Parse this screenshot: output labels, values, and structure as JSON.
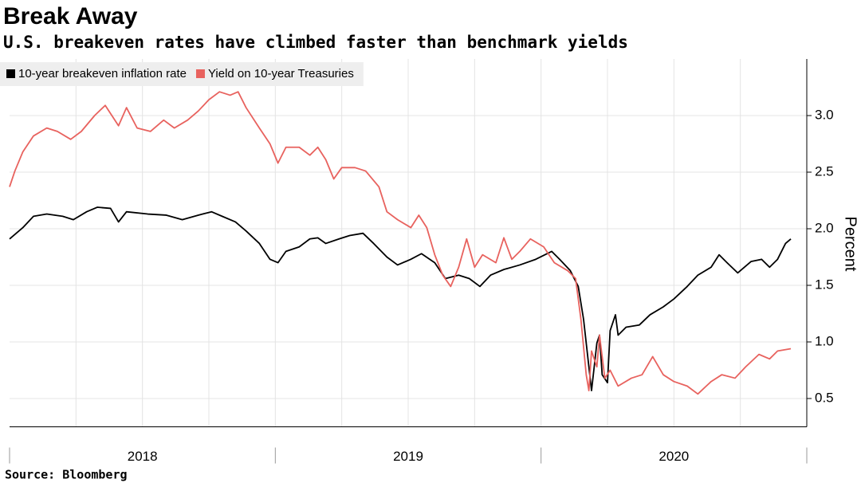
{
  "chart_data": {
    "type": "line",
    "title": "Break Away",
    "subtitle": "U.S. breakeven rates have climbed faster than benchmark yields",
    "source": "Source: Bloomberg",
    "y_label": "Percent",
    "legend": "upper left",
    "grid": true,
    "xlim": [
      2018,
      2021
    ],
    "xticks": [
      {
        "value": 2018.5,
        "label": "2018"
      },
      {
        "value": 2019.5,
        "label": "2019"
      },
      {
        "value": 2020.5,
        "label": "2020"
      }
    ],
    "ylim": [
      0.25,
      3.5
    ],
    "yticks": [
      0.5,
      {
        "value": 1,
        "label": "1.0"
      },
      1.5,
      {
        "value": 2,
        "label": "2.0"
      },
      2.5,
      {
        "value": 3,
        "label": "3.0"
      }
    ],
    "series": [
      {
        "name": "10-year breakeven inflation rate",
        "color": "#000000",
        "x": [
          2018.0,
          2018.05,
          2018.09,
          2018.14,
          2018.2,
          2018.24,
          2018.29,
          2018.33,
          2018.38,
          2018.41,
          2018.44,
          2018.52,
          2018.59,
          2018.65,
          2018.71,
          2018.76,
          2018.8,
          2018.85,
          2018.89,
          2018.94,
          2018.98,
          2019.01,
          2019.04,
          2019.09,
          2019.13,
          2019.16,
          2019.19,
          2019.24,
          2019.28,
          2019.33,
          2019.37,
          2019.42,
          2019.46,
          2019.51,
          2019.55,
          2019.6,
          2019.64,
          2019.69,
          2019.73,
          2019.77,
          2019.81,
          2019.86,
          2019.92,
          2019.98,
          2020.04,
          2020.07,
          2020.11,
          2020.14,
          2020.16,
          2020.18,
          2020.19,
          2020.21,
          2020.22,
          2020.23,
          2020.25,
          2020.26,
          2020.28,
          2020.29,
          2020.32,
          2020.37,
          2020.41,
          2020.46,
          2020.5,
          2020.55,
          2020.59,
          2020.64,
          2020.67,
          2020.7,
          2020.74,
          2020.79,
          2020.83,
          2020.86,
          2020.89,
          2020.92,
          2020.94
        ],
        "values": [
          1.91,
          2.01,
          2.11,
          2.13,
          2.11,
          2.08,
          2.15,
          2.19,
          2.18,
          2.06,
          2.15,
          2.13,
          2.12,
          2.08,
          2.12,
          2.15,
          2.11,
          2.06,
          1.98,
          1.87,
          1.73,
          1.7,
          1.8,
          1.84,
          1.91,
          1.92,
          1.87,
          1.91,
          1.94,
          1.96,
          1.87,
          1.75,
          1.68,
          1.73,
          1.78,
          1.7,
          1.56,
          1.59,
          1.56,
          1.49,
          1.59,
          1.64,
          1.68,
          1.73,
          1.8,
          1.73,
          1.63,
          1.49,
          1.2,
          0.78,
          0.57,
          0.99,
          1.06,
          0.71,
          0.64,
          1.1,
          1.24,
          1.06,
          1.13,
          1.15,
          1.24,
          1.31,
          1.38,
          1.49,
          1.59,
          1.66,
          1.77,
          1.7,
          1.61,
          1.71,
          1.73,
          1.66,
          1.73,
          1.87,
          1.91
        ]
      },
      {
        "name": "Yield on 10-year Treasuries",
        "color": "#e8625e",
        "x": [
          2018.0,
          2018.02,
          2018.05,
          2018.09,
          2018.14,
          2018.18,
          2018.23,
          2018.27,
          2018.32,
          2018.36,
          2018.41,
          2018.44,
          2018.48,
          2018.53,
          2018.58,
          2018.62,
          2018.67,
          2018.71,
          2018.75,
          2018.79,
          2018.83,
          2018.86,
          2018.89,
          2018.94,
          2018.98,
          2019.01,
          2019.04,
          2019.09,
          2019.13,
          2019.16,
          2019.19,
          2019.22,
          2019.25,
          2019.3,
          2019.34,
          2019.39,
          2019.42,
          2019.46,
          2019.51,
          2019.54,
          2019.57,
          2019.6,
          2019.63,
          2019.66,
          2019.69,
          2019.72,
          2019.75,
          2019.78,
          2019.83,
          2019.86,
          2019.89,
          2019.92,
          2019.96,
          2020.01,
          2020.05,
          2020.1,
          2020.13,
          2020.15,
          2020.17,
          2020.18,
          2020.19,
          2020.21,
          2020.22,
          2020.24,
          2020.26,
          2020.29,
          2020.34,
          2020.38,
          2020.42,
          2020.46,
          2020.5,
          2020.55,
          2020.59,
          2020.64,
          2020.68,
          2020.73,
          2020.77,
          2020.82,
          2020.86,
          2020.89,
          2020.94
        ],
        "values": [
          2.37,
          2.51,
          2.68,
          2.82,
          2.89,
          2.86,
          2.79,
          2.86,
          3.0,
          3.09,
          2.91,
          3.07,
          2.89,
          2.86,
          2.96,
          2.89,
          2.96,
          3.04,
          3.14,
          3.21,
          3.18,
          3.21,
          3.07,
          2.89,
          2.75,
          2.58,
          2.72,
          2.72,
          2.65,
          2.72,
          2.61,
          2.44,
          2.54,
          2.54,
          2.51,
          2.37,
          2.15,
          2.08,
          2.01,
          2.12,
          2.01,
          1.77,
          1.59,
          1.49,
          1.66,
          1.91,
          1.66,
          1.77,
          1.7,
          1.92,
          1.73,
          1.8,
          1.91,
          1.84,
          1.7,
          1.63,
          1.56,
          1.2,
          0.71,
          0.57,
          0.92,
          0.78,
          1.06,
          0.68,
          0.75,
          0.61,
          0.68,
          0.71,
          0.87,
          0.71,
          0.65,
          0.61,
          0.54,
          0.65,
          0.71,
          0.68,
          0.78,
          0.89,
          0.85,
          0.92,
          0.94
        ]
      }
    ]
  }
}
